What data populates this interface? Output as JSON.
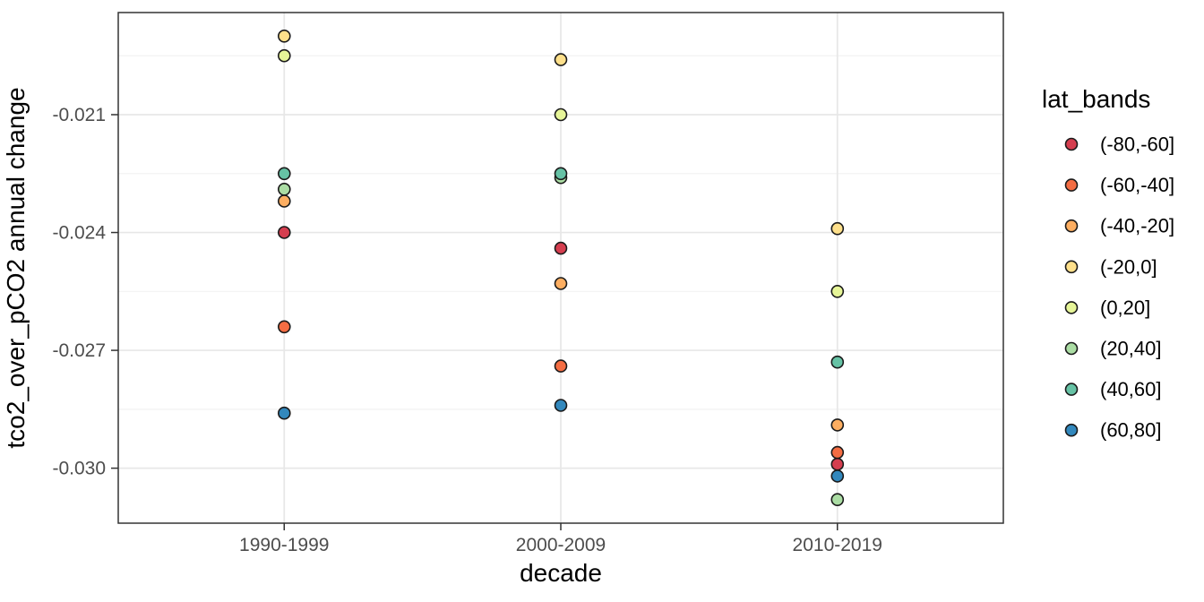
{
  "figure": {
    "background": "#FFFFFF"
  },
  "chart_data": {
    "type": "scatter",
    "title": "",
    "xlabel": "decade",
    "ylabel": "tco2_over_pCO2 annual change",
    "legend_title": "lat_bands",
    "legend_position": "right",
    "grid": true,
    "categories": [
      "1990-1999",
      "2000-2009",
      "2010-2019"
    ],
    "y_tick_values": [
      -0.021,
      -0.024,
      -0.027,
      -0.03
    ],
    "y_tick_labels": [
      "-0.021",
      "-0.024",
      "-0.027",
      "-0.030"
    ],
    "y_minor_gridlines": [
      -0.0195,
      -0.0225,
      -0.0255,
      -0.0285
    ],
    "ylim": [
      -0.0314,
      -0.0184
    ],
    "series": [
      {
        "name": "(-80,-60]",
        "color": "#D53E4F",
        "values": [
          -0.024,
          -0.0244,
          -0.0299
        ]
      },
      {
        "name": "(-60,-40]",
        "color": "#F46D43",
        "values": [
          -0.0264,
          -0.0274,
          -0.0296
        ]
      },
      {
        "name": "(-40,-20]",
        "color": "#FDAE61",
        "values": [
          -0.0232,
          -0.0253,
          -0.0289
        ]
      },
      {
        "name": "(-20,0]",
        "color": "#FEE08B",
        "values": [
          -0.019,
          -0.0196,
          -0.0239
        ]
      },
      {
        "name": "(0,20]",
        "color": "#E6F598",
        "values": [
          -0.0195,
          -0.021,
          -0.0255
        ]
      },
      {
        "name": "(20,40]",
        "color": "#ABDDA4",
        "values": [
          -0.0229,
          -0.0226,
          -0.0308
        ]
      },
      {
        "name": "(40,60]",
        "color": "#66C2A5",
        "values": [
          -0.0225,
          -0.0225,
          -0.0273
        ]
      },
      {
        "name": "(60,80]",
        "color": "#3288BD",
        "values": [
          -0.0286,
          -0.0284,
          -0.0302
        ]
      }
    ],
    "point_style": {
      "outline": "#1A1A1A",
      "radius": 6.5
    }
  },
  "theme": {
    "panel_background": "#FFFFFF",
    "panel_border": "#333333",
    "grid_major": "#E7E7E7",
    "grid_minor": "#F2F2F2",
    "tick_color": "#333333",
    "tick_label_color": "#4D4D4D",
    "title_color": "#000000",
    "legend_text_color": "#000000"
  }
}
